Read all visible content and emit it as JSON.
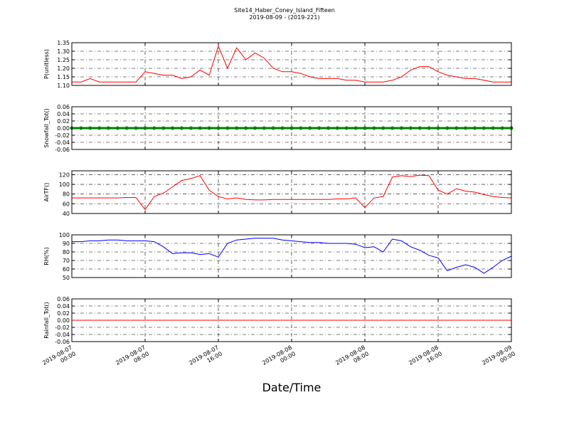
{
  "chart_data": [
    {
      "type": "line",
      "title": "Site14_Haber_Coney_Island_Fifteen",
      "subtitle": "2019-08-09 - (2019-221)",
      "ylabel": "P(unitless)",
      "grid": true,
      "xlim": [
        "2019-08-07 00:00",
        "2019-08-09 00:00"
      ],
      "x": [
        "2019-08-07 00:00",
        "2019-08-07 01:00",
        "2019-08-07 02:00",
        "2019-08-07 03:00",
        "2019-08-07 04:00",
        "2019-08-07 05:00",
        "2019-08-07 06:00",
        "2019-08-07 07:00",
        "2019-08-07 08:00",
        "2019-08-07 09:00",
        "2019-08-07 10:00",
        "2019-08-07 11:00",
        "2019-08-07 12:00",
        "2019-08-07 13:00",
        "2019-08-07 14:00",
        "2019-08-07 15:00",
        "2019-08-07 16:00",
        "2019-08-07 17:00",
        "2019-08-07 18:00",
        "2019-08-07 19:00",
        "2019-08-07 20:00",
        "2019-08-07 21:00",
        "2019-08-07 22:00",
        "2019-08-07 23:00",
        "2019-08-08 00:00",
        "2019-08-08 01:00",
        "2019-08-08 02:00",
        "2019-08-08 03:00",
        "2019-08-08 04:00",
        "2019-08-08 05:00",
        "2019-08-08 06:00",
        "2019-08-08 07:00",
        "2019-08-08 08:00",
        "2019-08-08 09:00",
        "2019-08-08 10:00",
        "2019-08-08 11:00",
        "2019-08-08 12:00",
        "2019-08-08 13:00",
        "2019-08-08 14:00",
        "2019-08-08 15:00",
        "2019-08-08 16:00",
        "2019-08-08 17:00",
        "2019-08-08 18:00",
        "2019-08-08 19:00",
        "2019-08-08 20:00",
        "2019-08-08 21:00",
        "2019-08-08 22:00",
        "2019-08-08 23:00",
        "2019-08-09 00:00"
      ],
      "series": [
        {
          "name": "P",
          "color": "#ff0000",
          "values": [
            1.12,
            1.12,
            1.14,
            1.12,
            1.12,
            1.12,
            1.12,
            1.12,
            1.18,
            1.17,
            1.16,
            1.16,
            1.14,
            1.15,
            1.19,
            1.16,
            1.33,
            1.2,
            1.32,
            1.25,
            1.29,
            1.26,
            1.2,
            1.18,
            1.18,
            1.17,
            1.15,
            1.14,
            1.14,
            1.14,
            1.13,
            1.13,
            1.12,
            1.12,
            1.12,
            1.13,
            1.15,
            1.19,
            1.21,
            1.21,
            1.18,
            1.16,
            1.15,
            1.14,
            1.14,
            1.13,
            1.12,
            1.12,
            1.12
          ]
        }
      ],
      "ylim": [
        1.1,
        1.35
      ],
      "yticks": [
        {
          "value": 1.1,
          "label": "1.10"
        },
        1.15,
        {
          "value": 1.2,
          "label": "1.20"
        },
        1.25,
        {
          "value": 1.3,
          "label": "1.30"
        },
        1.35
      ]
    },
    {
      "type": "line",
      "ylabel": "Snowfall_Tot()",
      "grid": true,
      "markers": true,
      "xlim": [
        "2019-08-07 00:00",
        "2019-08-09 00:00"
      ],
      "x": [
        "2019-08-07 00:00",
        "2019-08-07 01:00",
        "2019-08-07 02:00",
        "2019-08-07 03:00",
        "2019-08-07 04:00",
        "2019-08-07 05:00",
        "2019-08-07 06:00",
        "2019-08-07 07:00",
        "2019-08-07 08:00",
        "2019-08-07 09:00",
        "2019-08-07 10:00",
        "2019-08-07 11:00",
        "2019-08-07 12:00",
        "2019-08-07 13:00",
        "2019-08-07 14:00",
        "2019-08-07 15:00",
        "2019-08-07 16:00",
        "2019-08-07 17:00",
        "2019-08-07 18:00",
        "2019-08-07 19:00",
        "2019-08-07 20:00",
        "2019-08-07 21:00",
        "2019-08-07 22:00",
        "2019-08-07 23:00",
        "2019-08-08 00:00",
        "2019-08-08 01:00",
        "2019-08-08 02:00",
        "2019-08-08 03:00",
        "2019-08-08 04:00",
        "2019-08-08 05:00",
        "2019-08-08 06:00",
        "2019-08-08 07:00",
        "2019-08-08 08:00",
        "2019-08-08 09:00",
        "2019-08-08 10:00",
        "2019-08-08 11:00",
        "2019-08-08 12:00",
        "2019-08-08 13:00",
        "2019-08-08 14:00",
        "2019-08-08 15:00",
        "2019-08-08 16:00",
        "2019-08-08 17:00",
        "2019-08-08 18:00",
        "2019-08-08 19:00",
        "2019-08-08 20:00",
        "2019-08-08 21:00",
        "2019-08-08 22:00",
        "2019-08-08 23:00",
        "2019-08-09 00:00"
      ],
      "series": [
        {
          "name": "Snowfall_Tot",
          "color": "#008000",
          "values": [
            0,
            0,
            0,
            0,
            0,
            0,
            0,
            0,
            0,
            0,
            0,
            0,
            0,
            0,
            0,
            0,
            0,
            0,
            0,
            0,
            0,
            0,
            0,
            0,
            0,
            0,
            0,
            0,
            0,
            0,
            0,
            0,
            0,
            0,
            0,
            0,
            0,
            0,
            0,
            0,
            0,
            0,
            0,
            0,
            0,
            0,
            0,
            0,
            0
          ]
        }
      ],
      "ylim": [
        -0.06,
        0.06
      ],
      "yticks": [
        -0.06,
        -0.04,
        -0.02,
        {
          "value": 0,
          "label": "0.00"
        },
        0.02,
        0.04,
        0.06
      ]
    },
    {
      "type": "line",
      "ylabel": "AirTF()",
      "grid": true,
      "xlim": [
        "2019-08-07 00:00",
        "2019-08-09 00:00"
      ],
      "x": [
        "2019-08-07 00:00",
        "2019-08-07 01:00",
        "2019-08-07 02:00",
        "2019-08-07 03:00",
        "2019-08-07 04:00",
        "2019-08-07 05:00",
        "2019-08-07 06:00",
        "2019-08-07 07:00",
        "2019-08-07 08:00",
        "2019-08-07 09:00",
        "2019-08-07 10:00",
        "2019-08-07 11:00",
        "2019-08-07 12:00",
        "2019-08-07 13:00",
        "2019-08-07 14:00",
        "2019-08-07 15:00",
        "2019-08-07 16:00",
        "2019-08-07 17:00",
        "2019-08-07 18:00",
        "2019-08-07 19:00",
        "2019-08-07 20:00",
        "2019-08-07 21:00",
        "2019-08-07 22:00",
        "2019-08-07 23:00",
        "2019-08-08 00:00",
        "2019-08-08 01:00",
        "2019-08-08 02:00",
        "2019-08-08 03:00",
        "2019-08-08 04:00",
        "2019-08-08 05:00",
        "2019-08-08 06:00",
        "2019-08-08 07:00",
        "2019-08-08 08:00",
        "2019-08-08 09:00",
        "2019-08-08 10:00",
        "2019-08-08 11:00",
        "2019-08-08 12:00",
        "2019-08-08 13:00",
        "2019-08-08 14:00",
        "2019-08-08 15:00",
        "2019-08-08 16:00",
        "2019-08-08 17:00",
        "2019-08-08 18:00",
        "2019-08-08 19:00",
        "2019-08-08 20:00",
        "2019-08-08 21:00",
        "2019-08-08 22:00",
        "2019-08-08 23:00",
        "2019-08-09 00:00"
      ],
      "series": [
        {
          "name": "AirTF",
          "color": "#ff0000",
          "values": [
            72,
            72,
            72,
            72,
            72,
            72,
            73,
            73,
            48,
            75,
            82,
            95,
            108,
            112,
            118,
            88,
            75,
            70,
            72,
            69,
            68,
            68,
            69,
            69,
            69,
            69,
            69,
            69,
            69,
            70,
            70,
            72,
            52,
            72,
            75,
            115,
            118,
            116,
            119,
            118,
            88,
            80,
            91,
            86,
            84,
            79,
            75,
            73,
            72
          ]
        }
      ],
      "ylim": [
        40,
        128
      ],
      "yticks": [
        40,
        60,
        80,
        100,
        120
      ]
    },
    {
      "type": "line",
      "ylabel": "RH(%)",
      "grid": true,
      "xlim": [
        "2019-08-07 00:00",
        "2019-08-09 00:00"
      ],
      "x": [
        "2019-08-07 00:00",
        "2019-08-07 01:00",
        "2019-08-07 02:00",
        "2019-08-07 03:00",
        "2019-08-07 04:00",
        "2019-08-07 05:00",
        "2019-08-07 06:00",
        "2019-08-07 07:00",
        "2019-08-07 08:00",
        "2019-08-07 09:00",
        "2019-08-07 10:00",
        "2019-08-07 11:00",
        "2019-08-07 12:00",
        "2019-08-07 13:00",
        "2019-08-07 14:00",
        "2019-08-07 15:00",
        "2019-08-07 16:00",
        "2019-08-07 17:00",
        "2019-08-07 18:00",
        "2019-08-07 19:00",
        "2019-08-07 20:00",
        "2019-08-07 21:00",
        "2019-08-07 22:00",
        "2019-08-07 23:00",
        "2019-08-08 00:00",
        "2019-08-08 01:00",
        "2019-08-08 02:00",
        "2019-08-08 03:00",
        "2019-08-08 04:00",
        "2019-08-08 05:00",
        "2019-08-08 06:00",
        "2019-08-08 07:00",
        "2019-08-08 08:00",
        "2019-08-08 09:00",
        "2019-08-08 10:00",
        "2019-08-08 11:00",
        "2019-08-08 12:00",
        "2019-08-08 13:00",
        "2019-08-08 14:00",
        "2019-08-08 15:00",
        "2019-08-08 16:00",
        "2019-08-08 17:00",
        "2019-08-08 18:00",
        "2019-08-08 19:00",
        "2019-08-08 20:00",
        "2019-08-08 21:00",
        "2019-08-08 22:00",
        "2019-08-08 23:00",
        "2019-08-09 00:00"
      ],
      "series": [
        {
          "name": "RH",
          "color": "#0000ff",
          "values": [
            92,
            92,
            93,
            93,
            94,
            94,
            93,
            93,
            93,
            92,
            86,
            78,
            79,
            79,
            77,
            78,
            74,
            90,
            94,
            95,
            96,
            96,
            96,
            94,
            93,
            92,
            91,
            91,
            90,
            90,
            90,
            89,
            85,
            86,
            80,
            95,
            93,
            86,
            82,
            76,
            73,
            58,
            62,
            65,
            62,
            55,
            62,
            70,
            75
          ]
        }
      ],
      "ylim": [
        50,
        100
      ],
      "yticks": [
        50,
        60,
        70,
        80,
        90,
        100
      ]
    },
    {
      "type": "line",
      "ylabel": "Rainfall_Tot()",
      "xlabel": "Date/Time",
      "grid": true,
      "xlim": [
        "2019-08-07 00:00",
        "2019-08-09 00:00"
      ],
      "xticks": [
        "2019-08-07 00:00",
        "2019-08-07 08:00",
        "2019-08-07 16:00",
        "2019-08-08 00:00",
        "2019-08-08 08:00",
        "2019-08-08 16:00",
        "2019-08-09 00:00"
      ],
      "x": [
        "2019-08-07 00:00",
        "2019-08-07 01:00",
        "2019-08-07 02:00",
        "2019-08-07 03:00",
        "2019-08-07 04:00",
        "2019-08-07 05:00",
        "2019-08-07 06:00",
        "2019-08-07 07:00",
        "2019-08-07 08:00",
        "2019-08-07 09:00",
        "2019-08-07 10:00",
        "2019-08-07 11:00",
        "2019-08-07 12:00",
        "2019-08-07 13:00",
        "2019-08-07 14:00",
        "2019-08-07 15:00",
        "2019-08-07 16:00",
        "2019-08-07 17:00",
        "2019-08-07 18:00",
        "2019-08-07 19:00",
        "2019-08-07 20:00",
        "2019-08-07 21:00",
        "2019-08-07 22:00",
        "2019-08-07 23:00",
        "2019-08-08 00:00",
        "2019-08-08 01:00",
        "2019-08-08 02:00",
        "2019-08-08 03:00",
        "2019-08-08 04:00",
        "2019-08-08 05:00",
        "2019-08-08 06:00",
        "2019-08-08 07:00",
        "2019-08-08 08:00",
        "2019-08-08 09:00",
        "2019-08-08 10:00",
        "2019-08-08 11:00",
        "2019-08-08 12:00",
        "2019-08-08 13:00",
        "2019-08-08 14:00",
        "2019-08-08 15:00",
        "2019-08-08 16:00",
        "2019-08-08 17:00",
        "2019-08-08 18:00",
        "2019-08-08 19:00",
        "2019-08-08 20:00",
        "2019-08-08 21:00",
        "2019-08-08 22:00",
        "2019-08-08 23:00",
        "2019-08-09 00:00"
      ],
      "series": [
        {
          "name": "Rainfall_Tot",
          "color": "#ff0000",
          "values": [
            0,
            0,
            0,
            0,
            0,
            0,
            0,
            0,
            0,
            0,
            0,
            0,
            0,
            0,
            0,
            0,
            0,
            0,
            0,
            0,
            0,
            0,
            0,
            0,
            0,
            0,
            0,
            0,
            0,
            0,
            0,
            0,
            0,
            0,
            0,
            0,
            0,
            0,
            0,
            0,
            0,
            0,
            0,
            0,
            0,
            0,
            0,
            0,
            0
          ]
        }
      ],
      "ylim": [
        -0.06,
        0.06
      ],
      "yticks": [
        -0.06,
        -0.04,
        -0.02,
        {
          "value": 0,
          "label": "0.00"
        },
        0.02,
        0.04,
        0.06
      ]
    }
  ]
}
